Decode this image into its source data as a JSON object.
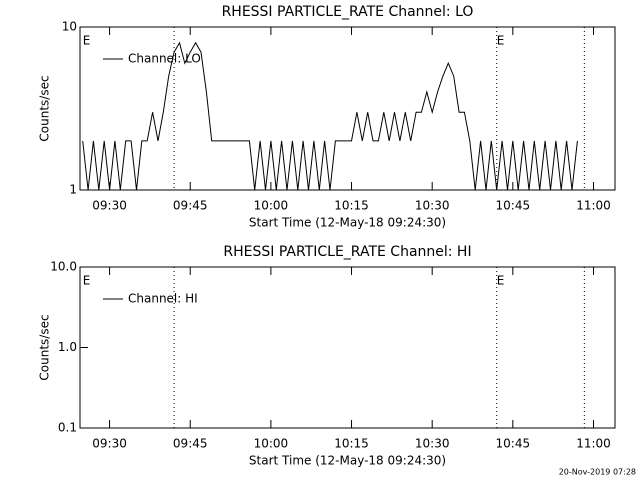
{
  "chart_data": [
    {
      "type": "line",
      "title": "RHESSI PARTICLE_RATE Channel: LO",
      "y_label": "Counts/sec",
      "x_label": "Start Time (12-May-18 09:24:30)",
      "log_y": true,
      "ylim": [
        1,
        10
      ],
      "yticks": [
        1,
        10
      ],
      "xlim": [
        564.5,
        664
      ],
      "xticks": [
        {
          "value": 570,
          "label": "09:30"
        },
        {
          "value": 585,
          "label": "09:45"
        },
        {
          "value": 600,
          "label": "10:00"
        },
        {
          "value": 615,
          "label": "10:15"
        },
        {
          "value": 630,
          "label": "10:30"
        },
        {
          "value": 645,
          "label": "10:45"
        },
        {
          "value": 660,
          "label": "11:00"
        }
      ],
      "vlines": [
        582,
        642,
        658.3
      ],
      "annotations": [
        {
          "text": "E",
          "x": 565
        },
        {
          "text": "E",
          "x": 642
        }
      ],
      "legend": "upper left",
      "x": [
        565,
        566,
        567,
        568,
        569,
        570,
        571,
        572,
        573,
        574,
        575,
        576,
        577,
        578,
        579,
        580,
        581,
        582,
        583,
        584,
        585,
        586,
        587,
        588,
        589,
        590,
        591,
        592,
        593,
        594,
        595,
        596,
        597,
        598,
        599,
        600,
        601,
        602,
        603,
        604,
        605,
        606,
        607,
        608,
        609,
        610,
        611,
        612,
        613,
        614,
        615,
        616,
        617,
        618,
        619,
        620,
        621,
        622,
        623,
        624,
        625,
        626,
        627,
        628,
        629,
        630,
        631,
        632,
        633,
        634,
        635,
        636,
        637,
        638,
        639,
        640,
        641,
        642,
        643,
        644,
        645,
        646,
        647,
        648,
        649,
        650,
        651,
        652,
        653,
        654,
        655,
        656,
        657
      ],
      "series": [
        {
          "name": "Channel: LO",
          "color": "#000000",
          "values": [
            2,
            1,
            2,
            1,
            2,
            1,
            2,
            1,
            2,
            2,
            1,
            2,
            2,
            3,
            2,
            3,
            5,
            7,
            8,
            6,
            7,
            8,
            7,
            4,
            2,
            2,
            2,
            2,
            2,
            2,
            2,
            2,
            1,
            2,
            1,
            2,
            1,
            2,
            1,
            2,
            1,
            2,
            1,
            2,
            1,
            2,
            1,
            2,
            2,
            2,
            2,
            3,
            2,
            3,
            2,
            2,
            3,
            2,
            3,
            2,
            3,
            2,
            3,
            3,
            4,
            3,
            4,
            5,
            6,
            5,
            3,
            3,
            2,
            1,
            2,
            1,
            2,
            1,
            2,
            1,
            2,
            1,
            2,
            1,
            2,
            1,
            2,
            1,
            2,
            1,
            2,
            1,
            2
          ]
        }
      ]
    },
    {
      "type": "line",
      "title": "RHESSI PARTICLE_RATE Channel: HI",
      "y_label": "Counts/sec",
      "x_label": "Start Time (12-May-18 09:24:30)",
      "log_y": true,
      "ylim": [
        0.1,
        10
      ],
      "yticks": [
        0.1,
        {
          "value": 1,
          "label": "1.0"
        },
        {
          "value": 10,
          "label": "10.0"
        }
      ],
      "xlim": [
        564.5,
        664
      ],
      "xticks": [
        {
          "value": 570,
          "label": "09:30"
        },
        {
          "value": 585,
          "label": "09:45"
        },
        {
          "value": 600,
          "label": "10:00"
        },
        {
          "value": 615,
          "label": "10:15"
        },
        {
          "value": 630,
          "label": "10:30"
        },
        {
          "value": 645,
          "label": "10:45"
        },
        {
          "value": 660,
          "label": "11:00"
        }
      ],
      "vlines": [
        582,
        642,
        658.3
      ],
      "annotations": [
        {
          "text": "E",
          "x": 565
        },
        {
          "text": "E",
          "x": 642
        }
      ],
      "legend": "upper left",
      "x": [],
      "series": [
        {
          "name": "Channel: HI",
          "color": "#000000",
          "values": []
        }
      ]
    }
  ],
  "footer": "20-Nov-2019 07:28"
}
